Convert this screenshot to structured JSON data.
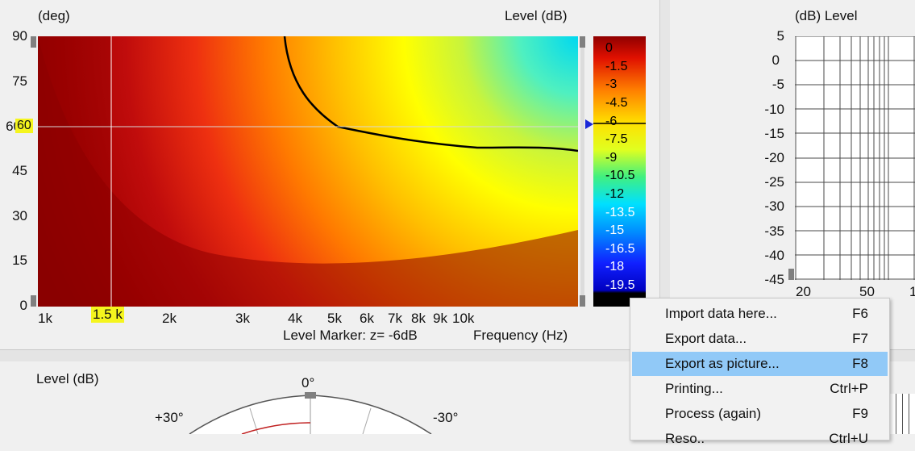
{
  "polar_map": {
    "y_unit_label": "(deg)",
    "level_label": "Level  (dB)",
    "y_ticks": [
      "90",
      "75",
      "60",
      "45",
      "30",
      "15",
      "0"
    ],
    "x_ticks": [
      "1k",
      "2k",
      "3k",
      "4k",
      "5k",
      "6k",
      "7k",
      "8k",
      "9k",
      "10k"
    ],
    "cursor_freq": "1.5 k",
    "cursor_angle": "60",
    "footer_marker": "Level Marker:  z= -6dB",
    "footer_axis": "Frequency  (Hz)",
    "colorbar_ticks": [
      "0",
      "-1.5",
      "-3",
      "-4.5",
      "-6",
      "-7.5",
      "-9",
      "-10.5",
      "-12",
      "-13.5",
      "-15",
      "-16.5",
      "-18",
      "-19.5"
    ]
  },
  "right_chart": {
    "header": "(dB)  Level",
    "y_ticks": [
      "5",
      "0",
      "-5",
      "-10",
      "-15",
      "-20",
      "-25",
      "-30",
      "-35",
      "-40",
      "-45"
    ],
    "x_ticks": [
      "20",
      "50",
      "1"
    ]
  },
  "bottom_panel": {
    "level_label": "Level  (dB)",
    "angle_top": "0°",
    "angle_left": "+30°",
    "angle_right": "-30°"
  },
  "context_menu": {
    "items": [
      {
        "label": "Import data here...",
        "shortcut": "F6"
      },
      {
        "label": "Export data...",
        "shortcut": "F7"
      },
      {
        "label": "Export as picture...",
        "shortcut": "F8"
      },
      {
        "label": "Printing...",
        "shortcut": "Ctrl+P"
      },
      {
        "label": "Process (again)",
        "shortcut": "F9"
      },
      {
        "label": "Reso..",
        "shortcut": "Ctrl+U"
      }
    ],
    "selected_index": 2
  },
  "colors": {
    "background": "#f0f0f0",
    "highlight": "#f5f51e",
    "menu_selection": "#91c9f7",
    "marker_line": "#000000"
  }
}
